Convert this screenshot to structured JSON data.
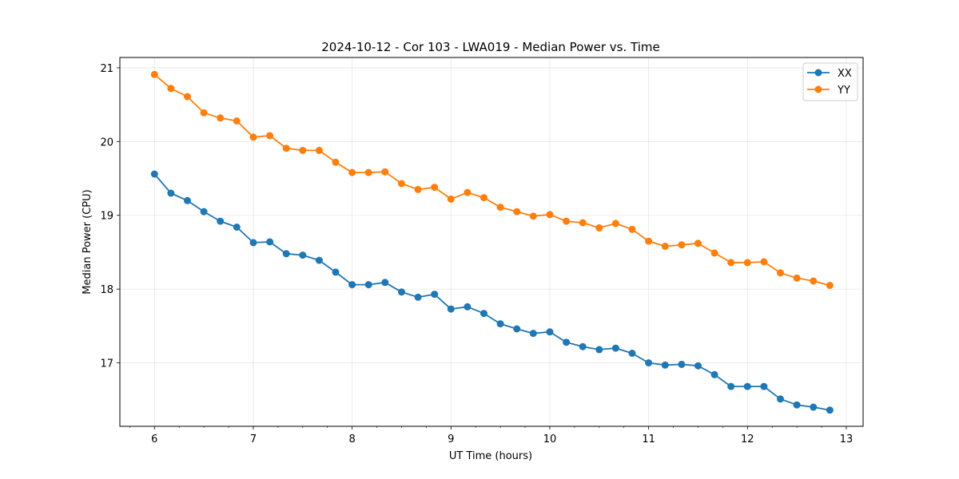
{
  "chart_data": {
    "type": "line",
    "title": "2024-10-12 - Cor 103 - LWA019 - Median Power vs. Time",
    "xlabel": "UT Time (hours)",
    "ylabel": "Median Power (CPU)",
    "xlim": [
      5.65,
      13.17
    ],
    "ylim": [
      16.14,
      21.14
    ],
    "xticks": [
      6,
      7,
      8,
      9,
      10,
      11,
      12,
      13
    ],
    "xtick_labels": [
      "6",
      "7",
      "8",
      "9",
      "10",
      "11",
      "12",
      "13"
    ],
    "yticks": [
      17,
      18,
      19,
      20,
      21
    ],
    "ytick_labels": [
      "17",
      "18",
      "19",
      "20",
      "21"
    ],
    "grid": true,
    "legend_position": "top-right",
    "x": [
      6.0,
      6.1667,
      6.3333,
      6.5,
      6.6667,
      6.8333,
      7.0,
      7.1667,
      7.3333,
      7.5,
      7.6667,
      7.8333,
      8.0,
      8.1667,
      8.3333,
      8.5,
      8.6667,
      8.8333,
      9.0,
      9.1667,
      9.3333,
      9.5,
      9.6667,
      9.8333,
      10.0,
      10.1667,
      10.3333,
      10.5,
      10.6667,
      10.8333,
      11.0,
      11.1667,
      11.3333,
      11.5,
      11.6667,
      11.8333,
      12.0,
      12.1667,
      12.3333,
      12.5,
      12.6667,
      12.8333
    ],
    "series": [
      {
        "name": "XX",
        "color": "#1f77b4",
        "values": [
          19.56,
          19.3,
          19.2,
          19.05,
          18.92,
          18.84,
          18.63,
          18.64,
          18.48,
          18.46,
          18.39,
          18.23,
          18.06,
          18.06,
          18.09,
          17.96,
          17.89,
          17.93,
          17.73,
          17.76,
          17.67,
          17.53,
          17.46,
          17.4,
          17.42,
          17.28,
          17.22,
          17.18,
          17.2,
          17.13,
          17.0,
          16.97,
          16.98,
          16.96,
          16.84,
          16.68,
          16.68,
          16.68,
          16.51,
          16.43,
          16.4,
          16.36
        ]
      },
      {
        "name": "YY",
        "color": "#ff7f0e",
        "values": [
          20.91,
          20.72,
          20.61,
          20.39,
          20.32,
          20.28,
          20.06,
          20.08,
          19.91,
          19.88,
          19.88,
          19.72,
          19.58,
          19.58,
          19.59,
          19.43,
          19.35,
          19.38,
          19.22,
          19.31,
          19.24,
          19.11,
          19.05,
          18.99,
          19.01,
          18.92,
          18.9,
          18.83,
          18.89,
          18.81,
          18.65,
          18.58,
          18.6,
          18.62,
          18.49,
          18.36,
          18.36,
          18.37,
          18.22,
          18.15,
          18.11,
          18.05
        ]
      }
    ]
  }
}
